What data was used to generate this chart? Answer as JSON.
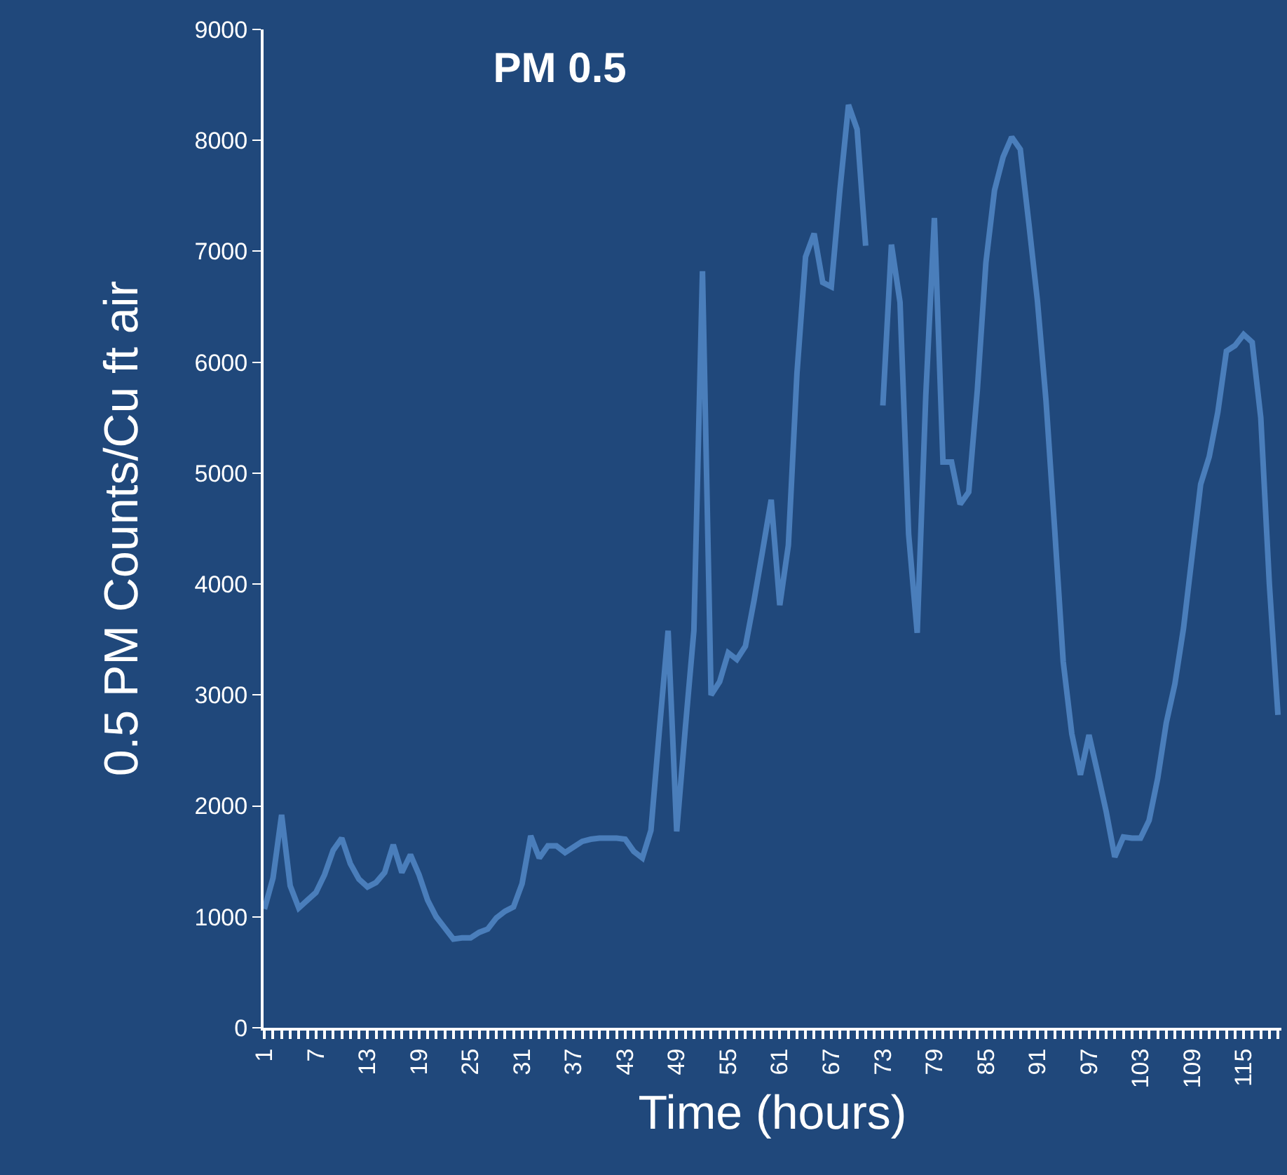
{
  "chart_data": {
    "type": "line",
    "title": "PM 0.5",
    "xlabel": "Time (hours)",
    "ylabel": "0.5 PM Counts/Cu ft air",
    "categories": [
      "1",
      null,
      null,
      null,
      null,
      null,
      "7",
      null,
      null,
      null,
      null,
      null,
      "13",
      null,
      null,
      null,
      null,
      null,
      "19",
      null,
      null,
      null,
      null,
      null,
      "25",
      null,
      null,
      null,
      null,
      null,
      "31",
      null,
      null,
      null,
      null,
      null,
      "37",
      null,
      null,
      null,
      null,
      null,
      "43",
      null,
      null,
      null,
      null,
      null,
      "49",
      null,
      null,
      null,
      null,
      null,
      "55",
      null,
      null,
      null,
      null,
      null,
      "61",
      null,
      null,
      null,
      null,
      null,
      "67",
      null,
      null,
      null,
      null,
      null,
      "73",
      null,
      null,
      null,
      null,
      null,
      "79",
      null,
      null,
      null,
      null,
      null,
      "85",
      null,
      null,
      null,
      null,
      null,
      "91",
      null,
      null,
      null,
      null,
      null,
      "97",
      null,
      null,
      null,
      null,
      null,
      "103",
      null,
      null,
      null,
      null,
      null,
      "109",
      null,
      null,
      null,
      null,
      null,
      "115",
      null,
      null,
      null,
      null
    ],
    "series": [
      {
        "color": "#4a7ebb",
        "values": [
          1070,
          1350,
          1920,
          1280,
          1080,
          1150,
          1220,
          1380,
          1600,
          1710,
          1480,
          1340,
          1270,
          1310,
          1400,
          1650,
          1400,
          1560,
          1380,
          1150,
          1000,
          900,
          800,
          810,
          810,
          860,
          890,
          990,
          1050,
          1090,
          1300,
          1730,
          1530,
          1640,
          1640,
          1580,
          1630,
          1680,
          1700,
          1710,
          1710,
          1710,
          1700,
          1590,
          1530,
          1780,
          2700,
          3580,
          1770,
          2700,
          3580,
          6820,
          3000,
          3120,
          3380,
          3320,
          3440,
          3850,
          4300,
          4760,
          3810,
          4350,
          5900,
          6950,
          7160,
          6720,
          6680,
          7550,
          8320,
          8100,
          7050,
          null,
          5610,
          7060,
          6540,
          4450,
          3560,
          5700,
          7300,
          5100,
          5100,
          4720,
          4830,
          5750,
          6900,
          7550,
          7850,
          8030,
          7920,
          7250,
          6550,
          5650,
          4500,
          3300,
          2650,
          2280,
          2640,
          2300,
          1950,
          1540,
          1720,
          1710,
          1710,
          1870,
          2250,
          2750,
          3100,
          3600,
          4250,
          4900,
          5150,
          5550,
          6100,
          6150,
          6250,
          6180,
          5500,
          4000,
          2820
        ]
      }
    ],
    "ylim": [
      0,
      9000
    ],
    "yticks": [
      0,
      1000,
      2000,
      3000,
      4000,
      5000,
      6000,
      7000,
      8000,
      9000
    ],
    "marker": "none",
    "line_style": "solid"
  }
}
